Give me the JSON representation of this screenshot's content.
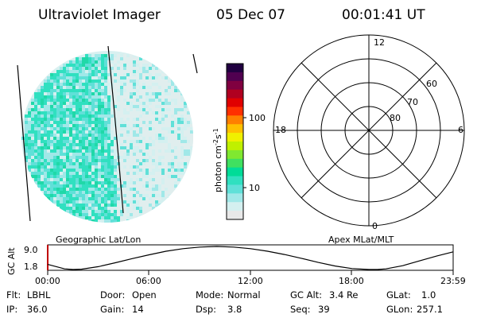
{
  "header": {
    "instrument": "Ultraviolet Imager",
    "date": "05 Dec 07",
    "time": "00:01:41 UT"
  },
  "colorbar": {
    "unit_prefix": "photon cm",
    "unit_exp1": "-2",
    "unit_mid": "s",
    "unit_exp2": "-1",
    "ticks": [
      "100",
      "10"
    ],
    "colors": [
      "#e8e8e8",
      "#d4f0f0",
      "#a0e8e8",
      "#60e0d8",
      "#30e0c0",
      "#00dc98",
      "#40e060",
      "#80e830",
      "#c0f000",
      "#f0f000",
      "#ffc000",
      "#ff8000",
      "#ff3000",
      "#e00000",
      "#b00020",
      "#800040",
      "#500050",
      "#200040"
    ]
  },
  "panels": {
    "left_label": "Geographic Lat/Lon",
    "right_label": "Apex MLat/MLT"
  },
  "polar": {
    "mlt_labels": {
      "top": "12",
      "left": "18",
      "right": "6",
      "bottom": "0"
    },
    "lat_labels": [
      "60",
      "70",
      "80"
    ]
  },
  "chart_data": {
    "type": "line",
    "title": "",
    "ylabel": "GC Alt",
    "ylim": [
      1.8,
      9.0
    ],
    "yticks": [
      "9.0",
      "1.8"
    ],
    "xticks": [
      "00:00",
      "06:00",
      "12:00",
      "18:00",
      "23:59"
    ],
    "series": [
      {
        "x": [
          0,
          1,
          1.5,
          2,
          3,
          4,
          5,
          6,
          7,
          8,
          9,
          10,
          11,
          12,
          13,
          14,
          15,
          16,
          17,
          18,
          19,
          19.5,
          20,
          21,
          22,
          23,
          23.98
        ],
        "values": [
          3.4,
          2.0,
          1.8,
          1.9,
          2.7,
          3.9,
          5.2,
          6.4,
          7.5,
          8.3,
          8.8,
          9.0,
          8.8,
          8.3,
          7.5,
          6.5,
          5.3,
          4.0,
          2.9,
          2.1,
          1.8,
          1.8,
          2.0,
          3.0,
          4.5,
          6.0,
          7.3
        ]
      }
    ]
  },
  "info": {
    "row1": [
      {
        "label": "Flt:",
        "value": "LBHL"
      },
      {
        "label": "Door:",
        "value": "Open"
      },
      {
        "label": "Mode:",
        "value": "Normal"
      },
      {
        "label": "GC Alt:",
        "value": "3.4 Re"
      },
      {
        "label": "GLat:",
        "value": "1.0"
      }
    ],
    "row2": [
      {
        "label": "IP:",
        "value": "36.0"
      },
      {
        "label": "Gain:",
        "value": "14"
      },
      {
        "label": "Dsp:",
        "value": "3.8"
      },
      {
        "label": "Seq:",
        "value": "39"
      },
      {
        "label": "GLon:",
        "value": "257.1"
      }
    ]
  }
}
